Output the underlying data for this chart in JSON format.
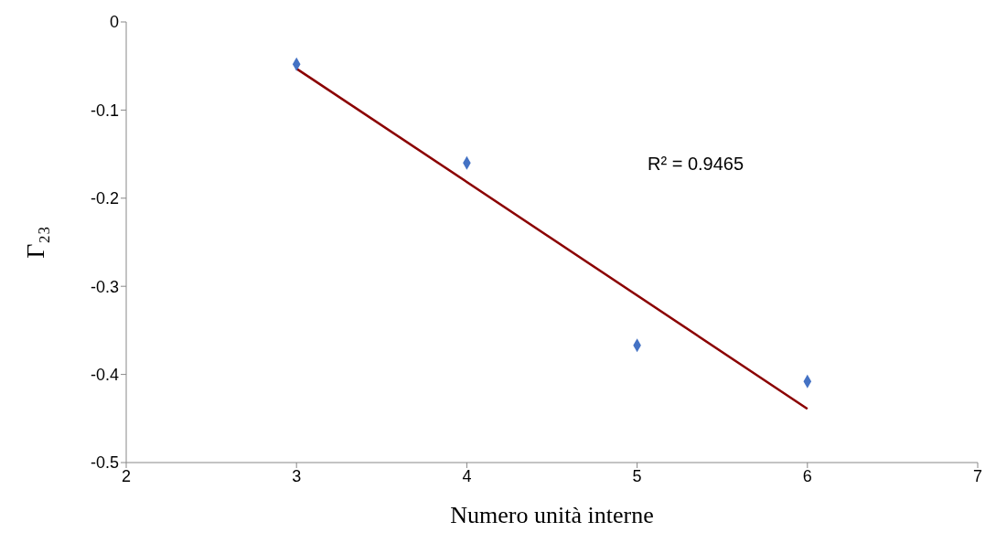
{
  "chart_data": {
    "type": "scatter",
    "xlabel": "Numero unità interne",
    "ylabel": "Γ₂₃",
    "xlim": [
      2,
      7
    ],
    "xticks": [
      2,
      3,
      4,
      5,
      6,
      7
    ],
    "ylim": [
      -0.5,
      0
    ],
    "yticks": [
      -0.5,
      -0.4,
      -0.3,
      -0.2,
      -0.1,
      0
    ],
    "grid": false,
    "line_style": "solid",
    "series": [
      {
        "marker": "diamond",
        "color": "#4472c4",
        "x": [
          3,
          4,
          5,
          6
        ],
        "values": [
          -0.048,
          -0.16,
          -0.367,
          -0.408
        ]
      },
      {
        "type": "line",
        "marker": "none",
        "color": "#8b0000",
        "x": [
          3,
          6
        ],
        "values": [
          -0.053,
          -0.439
        ]
      }
    ],
    "annotations": [
      "R² = 0.9465"
    ]
  }
}
